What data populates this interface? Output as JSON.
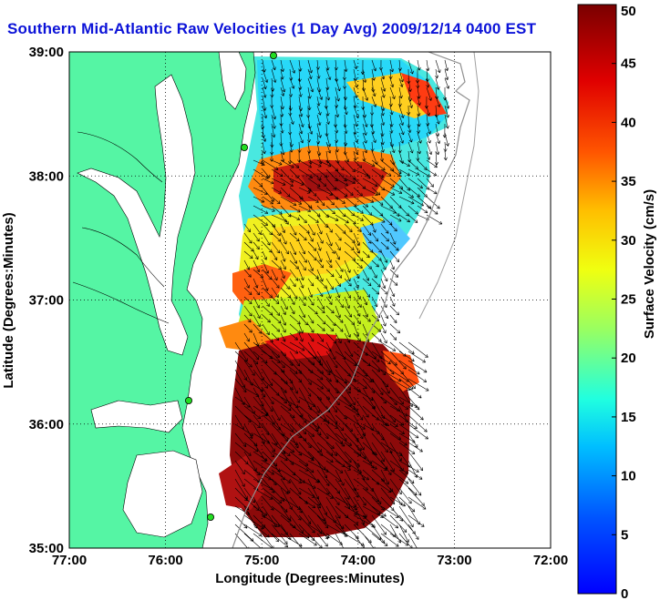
{
  "title": "Southern Mid-Atlantic Raw Velocities (1 Day Avg) 2009/12/14 0400 EST",
  "chart_data": {
    "type": "map",
    "xlabel": "Longitude (Degrees:Minutes)",
    "ylabel": "Latitude (Degrees:Minutes)",
    "xlim": [
      -77,
      -72
    ],
    "ylim": [
      35,
      39
    ],
    "xticks": [
      "77:00",
      "76:00",
      "75:00",
      "74:00",
      "73:00",
      "72:00"
    ],
    "yticks": [
      "35:00",
      "36:00",
      "37:00",
      "38:00",
      "39:00"
    ],
    "grid": true,
    "colorbar": {
      "label": "Surface Velocity (cm/s)",
      "range": [
        0,
        50
      ],
      "ticks": [
        "0",
        "5",
        "10",
        "15",
        "20",
        "25",
        "30",
        "35",
        "40",
        "45",
        "50"
      ],
      "colormap": "jet"
    },
    "colors": {
      "land": "#55f5a4",
      "title": "#0b12d8",
      "vectors": "#000000",
      "site_marker": "#22dd22"
    }
  }
}
